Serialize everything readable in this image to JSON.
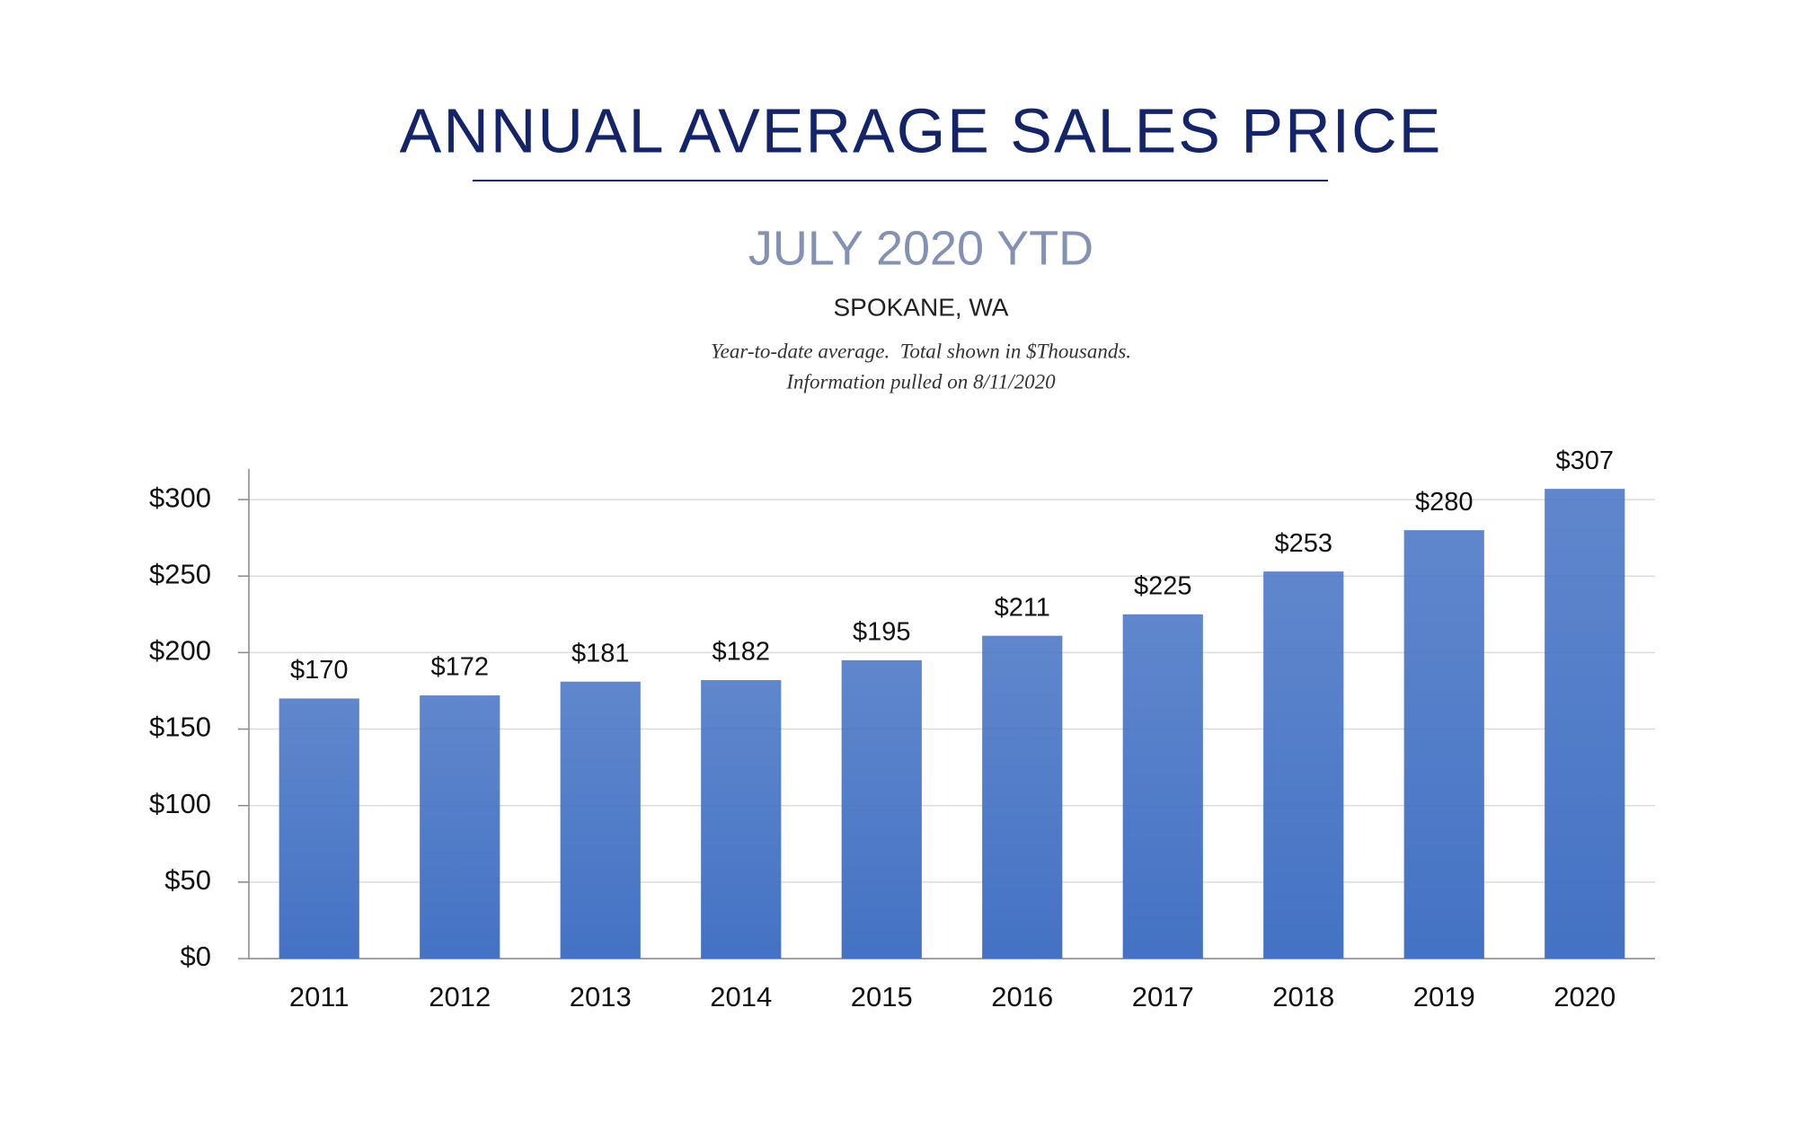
{
  "chart_data": {
    "type": "bar",
    "title": "ANNUAL AVERAGE SALES PRICE",
    "subtitle": "JULY 2020 YTD",
    "location": "SPOKANE, WA",
    "notes": [
      "Year-to-date average.  Total shown in $Thousands.",
      "Information pulled on 8/11/2020"
    ],
    "categories": [
      "2011",
      "2012",
      "2013",
      "2014",
      "2015",
      "2016",
      "2017",
      "2018",
      "2019",
      "2020"
    ],
    "values": [
      170,
      172,
      181,
      182,
      195,
      211,
      225,
      253,
      280,
      307
    ],
    "value_labels": [
      "$170",
      "$172",
      "$181",
      "$182",
      "$195",
      "$211",
      "$225",
      "$253",
      "$280",
      "$307"
    ],
    "color": "#4472c4",
    "ylim": [
      0,
      320
    ],
    "yticks": [
      {
        "value": 0,
        "label": "$0"
      },
      {
        "value": 50,
        "label": "$50"
      },
      {
        "value": 100,
        "label": "$100"
      },
      {
        "value": 150,
        "label": "$150"
      },
      {
        "value": 200,
        "label": "$200"
      },
      {
        "value": 250,
        "label": "$250"
      },
      {
        "value": 300,
        "label": "$300"
      }
    ],
    "grid": true
  }
}
